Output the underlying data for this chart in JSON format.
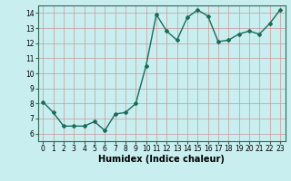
{
  "x": [
    0,
    1,
    2,
    3,
    4,
    5,
    6,
    7,
    8,
    9,
    10,
    11,
    12,
    13,
    14,
    15,
    16,
    17,
    18,
    19,
    20,
    21,
    22,
    23
  ],
  "y": [
    8.1,
    7.4,
    6.5,
    6.5,
    6.5,
    6.8,
    6.2,
    7.3,
    7.4,
    8.0,
    10.5,
    13.9,
    12.8,
    12.2,
    13.7,
    14.2,
    13.8,
    12.1,
    12.2,
    12.6,
    12.8,
    12.6,
    13.3,
    14.2
  ],
  "line_color": "#1a6b5a",
  "marker": "D",
  "marker_size": 2.0,
  "bg_color": "#c8eef0",
  "grid_color_major": "#cc9999",
  "grid_color_minor": "#99cccc",
  "xlabel": "Humidex (Indice chaleur)",
  "xlim": [
    -0.5,
    23.5
  ],
  "ylim": [
    5.5,
    14.5
  ],
  "yticks": [
    6,
    7,
    8,
    9,
    10,
    11,
    12,
    13,
    14
  ],
  "xticks": [
    0,
    1,
    2,
    3,
    4,
    5,
    6,
    7,
    8,
    9,
    10,
    11,
    12,
    13,
    14,
    15,
    16,
    17,
    18,
    19,
    20,
    21,
    22,
    23
  ],
  "tick_fontsize": 5.5,
  "xlabel_fontsize": 7.0,
  "line_width": 1.0,
  "spine_color": "#336655"
}
